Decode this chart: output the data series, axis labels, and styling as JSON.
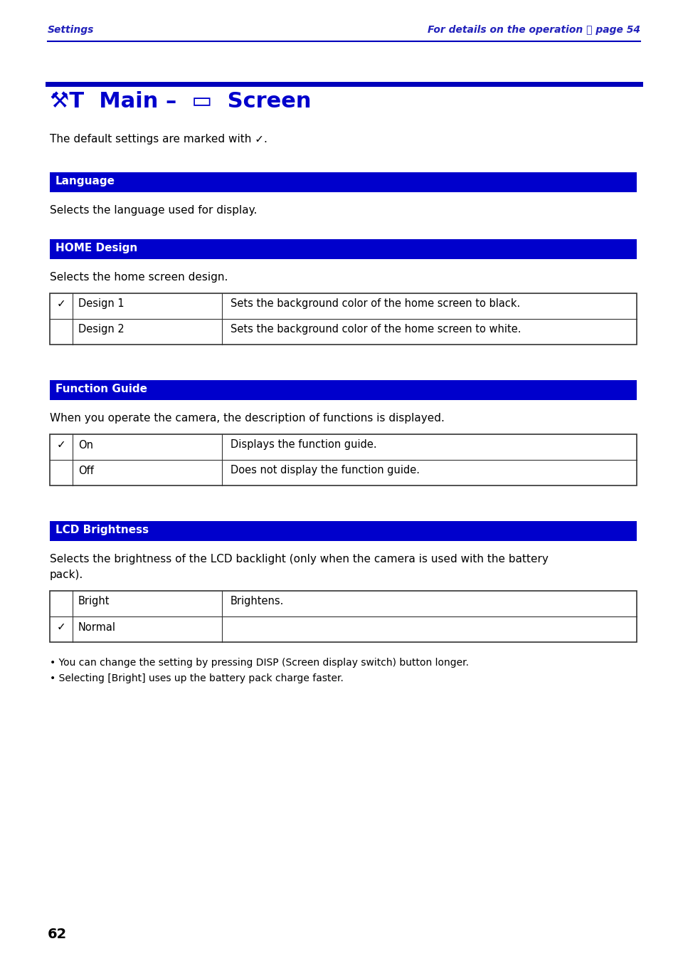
{
  "page_bg": "#ffffff",
  "header_left": "Settings",
  "header_right": "For details on the operation ⓕ page 54",
  "header_color": "#2222bb",
  "divider_color": "#0000bb",
  "section_bg": "#0000cc",
  "section_text_color": "#ffffff",
  "title_color": "#0000cc",
  "sections": [
    {
      "name": "Language",
      "desc": "Selects the language used for display.",
      "table": []
    },
    {
      "name": "HOME Design",
      "desc": "Selects the home screen design.",
      "table": [
        {
          "check": true,
          "col1": "Design 1",
          "col2": "Sets the background color of the home screen to black."
        },
        {
          "check": false,
          "col1": "Design 2",
          "col2": "Sets the background color of the home screen to white."
        }
      ]
    },
    {
      "name": "Function Guide",
      "desc": "When you operate the camera, the description of functions is displayed.",
      "table": [
        {
          "check": true,
          "col1": "On",
          "col2": "Displays the function guide."
        },
        {
          "check": false,
          "col1": "Off",
          "col2": "Does not display the function guide."
        }
      ]
    },
    {
      "name": "LCD Brightness",
      "desc": "Selects the brightness of the LCD backlight (only when the camera is used with the battery pack).",
      "table": [
        {
          "check": false,
          "col1": "Bright",
          "col2": "Brightens."
        },
        {
          "check": true,
          "col1": "Normal",
          "col2": ""
        }
      ]
    }
  ],
  "bullets": [
    "You can change the setting by pressing DISP (Screen display switch) button longer.",
    "Selecting [Bright] uses up the battery pack charge faster."
  ],
  "page_number": "62"
}
